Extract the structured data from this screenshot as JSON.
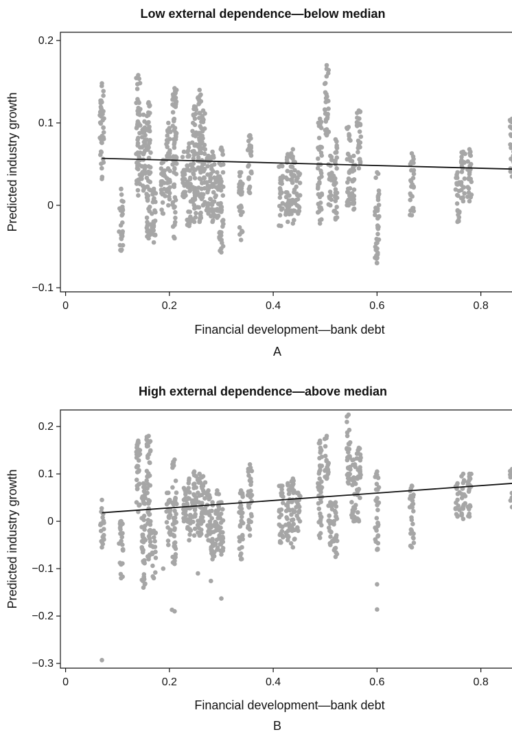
{
  "chart_data": [
    {
      "type": "scatter",
      "title": "Low external dependence—below median",
      "xlabel": "Financial development—bank debt",
      "ylabel": "Predicted industry growth",
      "panel_label": "A",
      "xlim": [
        -0.01,
        0.86
      ],
      "ylim": [
        -0.105,
        0.21
      ],
      "xticks": [
        0,
        0.2,
        0.4,
        0.6,
        0.8
      ],
      "xtick_labels": [
        "0",
        "0.2",
        "0.4",
        "0.6",
        "0.8"
      ],
      "yticks": [
        -0.1,
        0,
        0.1,
        0.2
      ],
      "ytick_labels": [
        "−0.1",
        "0",
        "0.1",
        "0.2"
      ],
      "grid": false,
      "point_color": "#a6a6a6",
      "line_color": "#111111",
      "fit_line": {
        "x": [
          0.07,
          0.86
        ],
        "y": [
          0.057,
          0.044
        ]
      },
      "clusters": [
        {
          "x": 0.07,
          "ymin": 0.032,
          "ymax": 0.148
        },
        {
          "x": 0.107,
          "ymin": -0.055,
          "ymax": 0.02
        },
        {
          "x": 0.14,
          "ymin": 0.012,
          "ymax": 0.158
        },
        {
          "x": 0.15,
          "ymin": 0.018,
          "ymax": 0.11
        },
        {
          "x": 0.16,
          "ymin": -0.04,
          "ymax": 0.125
        },
        {
          "x": 0.17,
          "ymin": -0.045,
          "ymax": 0.02
        },
        {
          "x": 0.188,
          "ymin": -0.01,
          "ymax": 0.055
        },
        {
          "x": 0.198,
          "ymin": 0.0,
          "ymax": 0.1
        },
        {
          "x": 0.21,
          "ymin": -0.04,
          "ymax": 0.142
        },
        {
          "x": 0.228,
          "ymin": 0.01,
          "ymax": 0.065
        },
        {
          "x": 0.238,
          "ymin": -0.025,
          "ymax": 0.075
        },
        {
          "x": 0.248,
          "ymin": -0.02,
          "ymax": 0.12
        },
        {
          "x": 0.258,
          "ymin": -0.02,
          "ymax": 0.14
        },
        {
          "x": 0.265,
          "ymin": 0.0,
          "ymax": 0.115
        },
        {
          "x": 0.275,
          "ymin": -0.01,
          "ymax": 0.06
        },
        {
          "x": 0.283,
          "ymin": -0.02,
          "ymax": 0.065
        },
        {
          "x": 0.292,
          "ymin": -0.015,
          "ymax": 0.04
        },
        {
          "x": 0.3,
          "ymin": -0.057,
          "ymax": 0.07
        },
        {
          "x": 0.338,
          "ymin": -0.042,
          "ymax": 0.04
        },
        {
          "x": 0.355,
          "ymin": 0.015,
          "ymax": 0.085
        },
        {
          "x": 0.415,
          "ymin": -0.025,
          "ymax": 0.048
        },
        {
          "x": 0.428,
          "ymin": -0.02,
          "ymax": 0.062
        },
        {
          "x": 0.438,
          "ymin": -0.022,
          "ymax": 0.068
        },
        {
          "x": 0.448,
          "ymin": -0.01,
          "ymax": 0.04
        },
        {
          "x": 0.49,
          "ymin": -0.022,
          "ymax": 0.105
        },
        {
          "x": 0.503,
          "ymin": 0.085,
          "ymax": 0.17
        },
        {
          "x": 0.51,
          "ymin": 0.0,
          "ymax": 0.06
        },
        {
          "x": 0.52,
          "ymin": -0.017,
          "ymax": 0.08
        },
        {
          "x": 0.545,
          "ymin": 0.0,
          "ymax": 0.095
        },
        {
          "x": 0.555,
          "ymin": -0.005,
          "ymax": 0.06
        },
        {
          "x": 0.565,
          "ymin": 0.045,
          "ymax": 0.115
        },
        {
          "x": 0.6,
          "ymin": -0.07,
          "ymax": 0.04
        },
        {
          "x": 0.667,
          "ymin": -0.012,
          "ymax": 0.063
        },
        {
          "x": 0.755,
          "ymin": -0.02,
          "ymax": 0.04
        },
        {
          "x": 0.766,
          "ymin": 0.005,
          "ymax": 0.065
        },
        {
          "x": 0.778,
          "ymin": 0.005,
          "ymax": 0.068
        },
        {
          "x": 0.86,
          "ymin": 0.035,
          "ymax": 0.105
        }
      ]
    },
    {
      "type": "scatter",
      "title": "High external dependence—above median",
      "xlabel": "Financial development—bank debt",
      "ylabel": "Predicted industry growth",
      "panel_label": "B",
      "xlim": [
        -0.01,
        0.86
      ],
      "ylim": [
        -0.31,
        0.235
      ],
      "xticks": [
        0,
        0.2,
        0.4,
        0.6,
        0.8
      ],
      "xtick_labels": [
        "0",
        "0.2",
        "0.4",
        "0.6",
        "0.8"
      ],
      "yticks": [
        -0.3,
        -0.2,
        -0.1,
        0,
        0.1,
        0.2
      ],
      "ytick_labels": [
        "−0.3",
        "−0.2",
        "−0.1",
        "0",
        "0.1",
        "0.2"
      ],
      "grid": false,
      "point_color": "#a6a6a6",
      "line_color": "#111111",
      "fit_line": {
        "x": [
          0.07,
          0.86
        ],
        "y": [
          0.018,
          0.08
        ]
      },
      "outliers": [
        {
          "x": 0.07,
          "y": -0.293
        },
        {
          "x": 0.205,
          "y": -0.187
        },
        {
          "x": 0.21,
          "y": -0.19
        },
        {
          "x": 0.3,
          "y": -0.163
        },
        {
          "x": 0.6,
          "y": -0.186
        },
        {
          "x": 0.6,
          "y": -0.133
        },
        {
          "x": 0.28,
          "y": -0.126
        },
        {
          "x": 0.255,
          "y": -0.11
        },
        {
          "x": 0.188,
          "y": -0.1
        }
      ],
      "clusters": [
        {
          "x": 0.07,
          "ymin": -0.055,
          "ymax": 0.045
        },
        {
          "x": 0.107,
          "ymin": -0.12,
          "ymax": 0.0
        },
        {
          "x": 0.14,
          "ymin": 0.02,
          "ymax": 0.17
        },
        {
          "x": 0.15,
          "ymin": -0.14,
          "ymax": 0.08
        },
        {
          "x": 0.16,
          "ymin": -0.08,
          "ymax": 0.18
        },
        {
          "x": 0.17,
          "ymin": -0.12,
          "ymax": -0.02
        },
        {
          "x": 0.198,
          "ymin": -0.05,
          "ymax": 0.06
        },
        {
          "x": 0.21,
          "ymin": -0.09,
          "ymax": 0.13
        },
        {
          "x": 0.228,
          "ymin": 0.0,
          "ymax": 0.07
        },
        {
          "x": 0.238,
          "ymin": -0.04,
          "ymax": 0.09
        },
        {
          "x": 0.248,
          "ymin": -0.03,
          "ymax": 0.105
        },
        {
          "x": 0.258,
          "ymin": -0.03,
          "ymax": 0.1
        },
        {
          "x": 0.265,
          "ymin": 0.0,
          "ymax": 0.095
        },
        {
          "x": 0.275,
          "ymin": -0.04,
          "ymax": 0.065
        },
        {
          "x": 0.283,
          "ymin": -0.08,
          "ymax": 0.04
        },
        {
          "x": 0.292,
          "ymin": -0.06,
          "ymax": 0.065
        },
        {
          "x": 0.3,
          "ymin": -0.07,
          "ymax": 0.04
        },
        {
          "x": 0.338,
          "ymin": -0.08,
          "ymax": 0.065
        },
        {
          "x": 0.355,
          "ymin": -0.03,
          "ymax": 0.12
        },
        {
          "x": 0.415,
          "ymin": -0.045,
          "ymax": 0.075
        },
        {
          "x": 0.428,
          "ymin": -0.04,
          "ymax": 0.08
        },
        {
          "x": 0.438,
          "ymin": -0.055,
          "ymax": 0.09
        },
        {
          "x": 0.448,
          "ymin": -0.02,
          "ymax": 0.06
        },
        {
          "x": 0.49,
          "ymin": -0.035,
          "ymax": 0.17
        },
        {
          "x": 0.503,
          "ymin": 0.09,
          "ymax": 0.18
        },
        {
          "x": 0.51,
          "ymin": -0.05,
          "ymax": 0.04
        },
        {
          "x": 0.52,
          "ymin": -0.075,
          "ymax": 0.04
        },
        {
          "x": 0.545,
          "ymin": 0.08,
          "ymax": 0.225
        },
        {
          "x": 0.555,
          "ymin": 0.0,
          "ymax": 0.13
        },
        {
          "x": 0.565,
          "ymin": 0.0,
          "ymax": 0.155
        },
        {
          "x": 0.6,
          "ymin": -0.06,
          "ymax": 0.105
        },
        {
          "x": 0.667,
          "ymin": -0.055,
          "ymax": 0.075
        },
        {
          "x": 0.755,
          "ymin": 0.01,
          "ymax": 0.08
        },
        {
          "x": 0.766,
          "ymin": 0.005,
          "ymax": 0.1
        },
        {
          "x": 0.778,
          "ymin": 0.01,
          "ymax": 0.1
        },
        {
          "x": 0.86,
          "ymin": 0.03,
          "ymax": 0.11
        }
      ]
    }
  ]
}
